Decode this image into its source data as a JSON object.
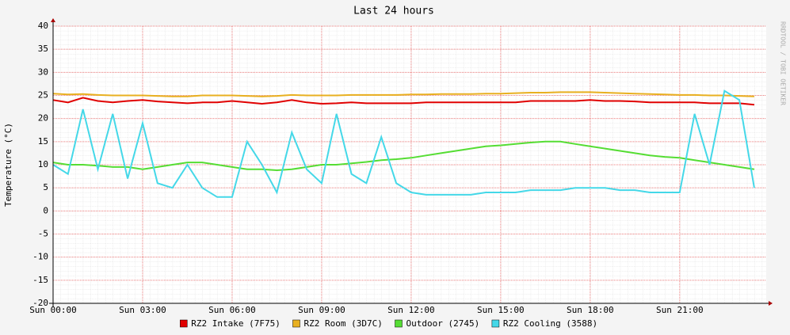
{
  "chart_data": {
    "type": "line",
    "title": "Last 24 hours",
    "y_label": "Temperature (°C)",
    "side_note": "RRDTOOL / TOBI OETIKER",
    "x": [
      0,
      0.5,
      1,
      1.5,
      2,
      2.5,
      3,
      3.5,
      4,
      4.5,
      5,
      5.5,
      6,
      6.5,
      7,
      7.5,
      8,
      8.5,
      9,
      9.5,
      10,
      10.5,
      11,
      11.5,
      12,
      12.5,
      13,
      13.5,
      14,
      14.5,
      15,
      15.5,
      16,
      16.5,
      17,
      17.5,
      18,
      18.5,
      19,
      19.5,
      20,
      20.5,
      21,
      21.5,
      22,
      22.5,
      23,
      23.5
    ],
    "xlim": [
      0,
      23.9
    ],
    "xticks": [
      {
        "value": 0,
        "label": "Sun 00:00"
      },
      {
        "value": 3,
        "label": "Sun 03:00"
      },
      {
        "value": 6,
        "label": "Sun 06:00"
      },
      {
        "value": 9,
        "label": "Sun 09:00"
      },
      {
        "value": 12,
        "label": "Sun 12:00"
      },
      {
        "value": 15,
        "label": "Sun 15:00"
      },
      {
        "value": 18,
        "label": "Sun 18:00"
      },
      {
        "value": 21,
        "label": "Sun 21:00"
      }
    ],
    "ylim": [
      -20,
      40
    ],
    "yticks": [
      -20,
      -15,
      -10,
      -5,
      0,
      5,
      10,
      15,
      20,
      25,
      30,
      35,
      40
    ],
    "grid": true,
    "legend": "bottom",
    "series": [
      {
        "name": "RZ2 Intake (7F75)",
        "color": "#e00000",
        "values": [
          24,
          23.5,
          24.5,
          23.8,
          23.5,
          23.8,
          24,
          23.7,
          23.5,
          23.3,
          23.5,
          23.5,
          23.8,
          23.5,
          23.2,
          23.5,
          24,
          23.5,
          23.2,
          23.3,
          23.5,
          23.3,
          23.3,
          23.3,
          23.3,
          23.5,
          23.5,
          23.5,
          23.5,
          23.5,
          23.5,
          23.5,
          23.8,
          23.8,
          23.8,
          23.8,
          24,
          23.8,
          23.8,
          23.7,
          23.5,
          23.5,
          23.5,
          23.5,
          23.3,
          23.3,
          23.3,
          23
        ]
      },
      {
        "name": "RZ2 Room (3D7C)",
        "color": "#e8b020",
        "values": [
          25.4,
          25.2,
          25.3,
          25.1,
          25,
          25,
          25,
          24.9,
          24.8,
          24.8,
          25,
          25,
          25,
          24.9,
          24.8,
          24.9,
          25.1,
          25,
          25,
          25,
          25.1,
          25.1,
          25.1,
          25.1,
          25.2,
          25.2,
          25.3,
          25.3,
          25.3,
          25.4,
          25.4,
          25.5,
          25.6,
          25.6,
          25.7,
          25.7,
          25.7,
          25.6,
          25.5,
          25.4,
          25.3,
          25.2,
          25.1,
          25.1,
          25,
          25,
          24.9,
          24.8
        ]
      },
      {
        "name": "Outdoor (2745)",
        "color": "#55dd33",
        "values": [
          10.5,
          10,
          10,
          9.8,
          9.5,
          9.5,
          9,
          9.5,
          10,
          10.5,
          10.5,
          10,
          9.5,
          9,
          9,
          8.8,
          9,
          9.5,
          10,
          10,
          10.3,
          10.6,
          11,
          11.2,
          11.5,
          12,
          12.5,
          13,
          13.5,
          14,
          14.2,
          14.5,
          14.8,
          15,
          15,
          14.5,
          14,
          13.5,
          13,
          12.5,
          12,
          11.7,
          11.5,
          11,
          10.5,
          10,
          9.5,
          9
        ]
      },
      {
        "name": "RZ2 Cooling (3588)",
        "color": "#44d8e8",
        "values": [
          10,
          8,
          22,
          9,
          21,
          7,
          19,
          6,
          5,
          10,
          5,
          3,
          3,
          15,
          10,
          4,
          17,
          9,
          6,
          21,
          8,
          6,
          16,
          6,
          4,
          3.5,
          3.5,
          3.5,
          3.5,
          4,
          4,
          4,
          4.5,
          4.5,
          4.5,
          5,
          5,
          5,
          4.5,
          4.5,
          4,
          4,
          4,
          21,
          10,
          26,
          24,
          5
        ]
      }
    ]
  }
}
